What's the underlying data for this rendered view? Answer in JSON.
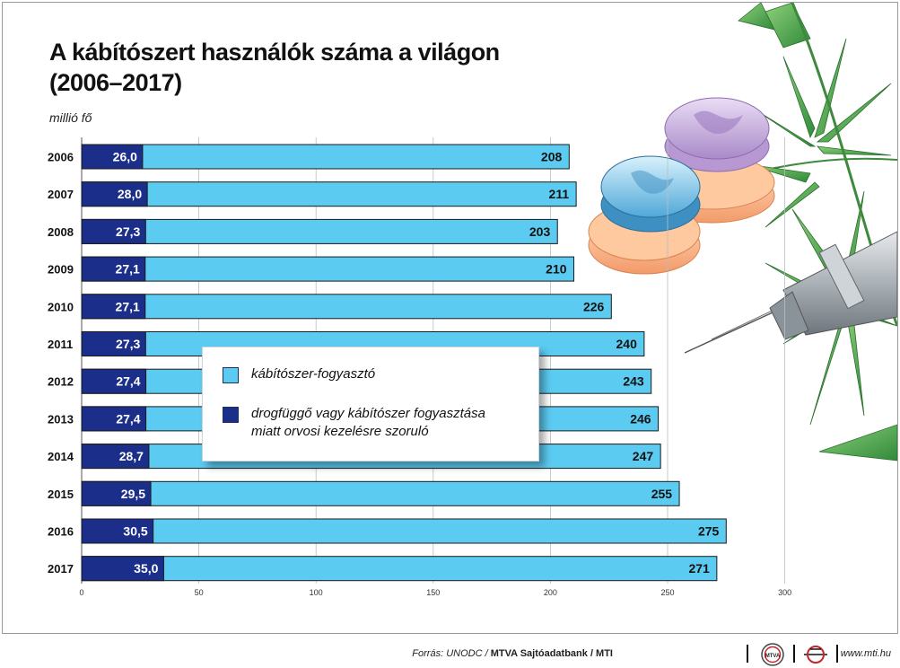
{
  "title": {
    "line1": "A kábítószert használók száma a világon",
    "line2": "(2006–2017)"
  },
  "unit_label": "millió fő",
  "legend": {
    "item1": "kábítószer-fogyasztó",
    "item2_line1": "drogfüggő vagy kábítószer fogyasztása",
    "item2_line2": "miatt orvosi kezelésre szoruló"
  },
  "footer": {
    "source_prefix": "Forrás: UNODC / ",
    "source_bold": "MTVA Sajtóadatbank / MTI",
    "logo1": "MTVA",
    "website": "www.mti.hu"
  },
  "colors": {
    "light_bar": "#5ccbf2",
    "dark_bar": "#1b2e8a",
    "bar_outline": "#1a1a1a"
  },
  "chart_data": {
    "type": "bar",
    "orientation": "horizontal",
    "categories": [
      "2006",
      "2007",
      "2008",
      "2009",
      "2010",
      "2011",
      "2012",
      "2013",
      "2014",
      "2015",
      "2016",
      "2017"
    ],
    "series": [
      {
        "name": "drogfüggő vagy kábítószer fogyasztása miatt orvosi kezelésre szoruló",
        "values": [
          26.0,
          28.0,
          27.3,
          27.1,
          27.1,
          27.3,
          27.4,
          27.4,
          28.7,
          29.5,
          30.5,
          35.0
        ],
        "labels": [
          "26,0",
          "28,0",
          "27,3",
          "27,1",
          "27,1",
          "27,3",
          "27,4",
          "27,4",
          "28,7",
          "29,5",
          "30,5",
          "35,0"
        ]
      },
      {
        "name": "kábítószer-fogyasztó",
        "values": [
          208,
          211,
          203,
          210,
          226,
          240,
          243,
          246,
          247,
          255,
          275,
          271
        ],
        "labels": [
          "208",
          "211",
          "203",
          "210",
          "226",
          "240",
          "243",
          "246",
          "247",
          "255",
          "275",
          "271"
        ]
      }
    ],
    "xlim": [
      0,
      300
    ],
    "xticks": [
      0,
      50,
      100,
      150,
      200,
      250,
      300
    ],
    "xtick_labels": [
      "0",
      "50",
      "100",
      "150",
      "200",
      "250",
      "300"
    ],
    "title": "A kábítószert használók száma a világon (2006–2017)",
    "xlabel": "",
    "ylabel": "millió fő",
    "grid": "vertical",
    "legend_position": "center"
  }
}
